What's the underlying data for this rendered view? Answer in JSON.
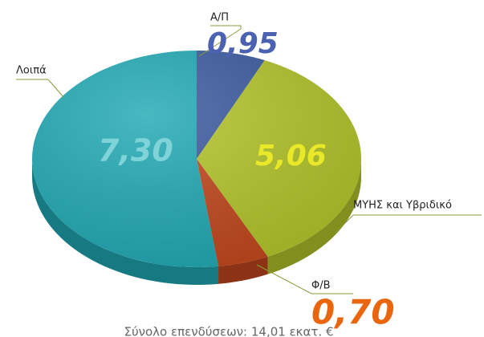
{
  "chart_data": {
    "type": "pie",
    "categories": [
      "Α/Π",
      "ΜΥΗΣ και Υβριδικό",
      "Φ/Β",
      "Λοιπά"
    ],
    "values": [
      0.95,
      5.06,
      0.7,
      7.3
    ],
    "value_labels": [
      "0,95",
      "5,06",
      "0,70",
      "7,30"
    ],
    "colors": [
      "#3b5aa0",
      "#b4c52a",
      "#c2471d",
      "#20a9b4"
    ],
    "footnote": "Σύνολο επενδύσεων: 14,01 εκατ. €"
  }
}
